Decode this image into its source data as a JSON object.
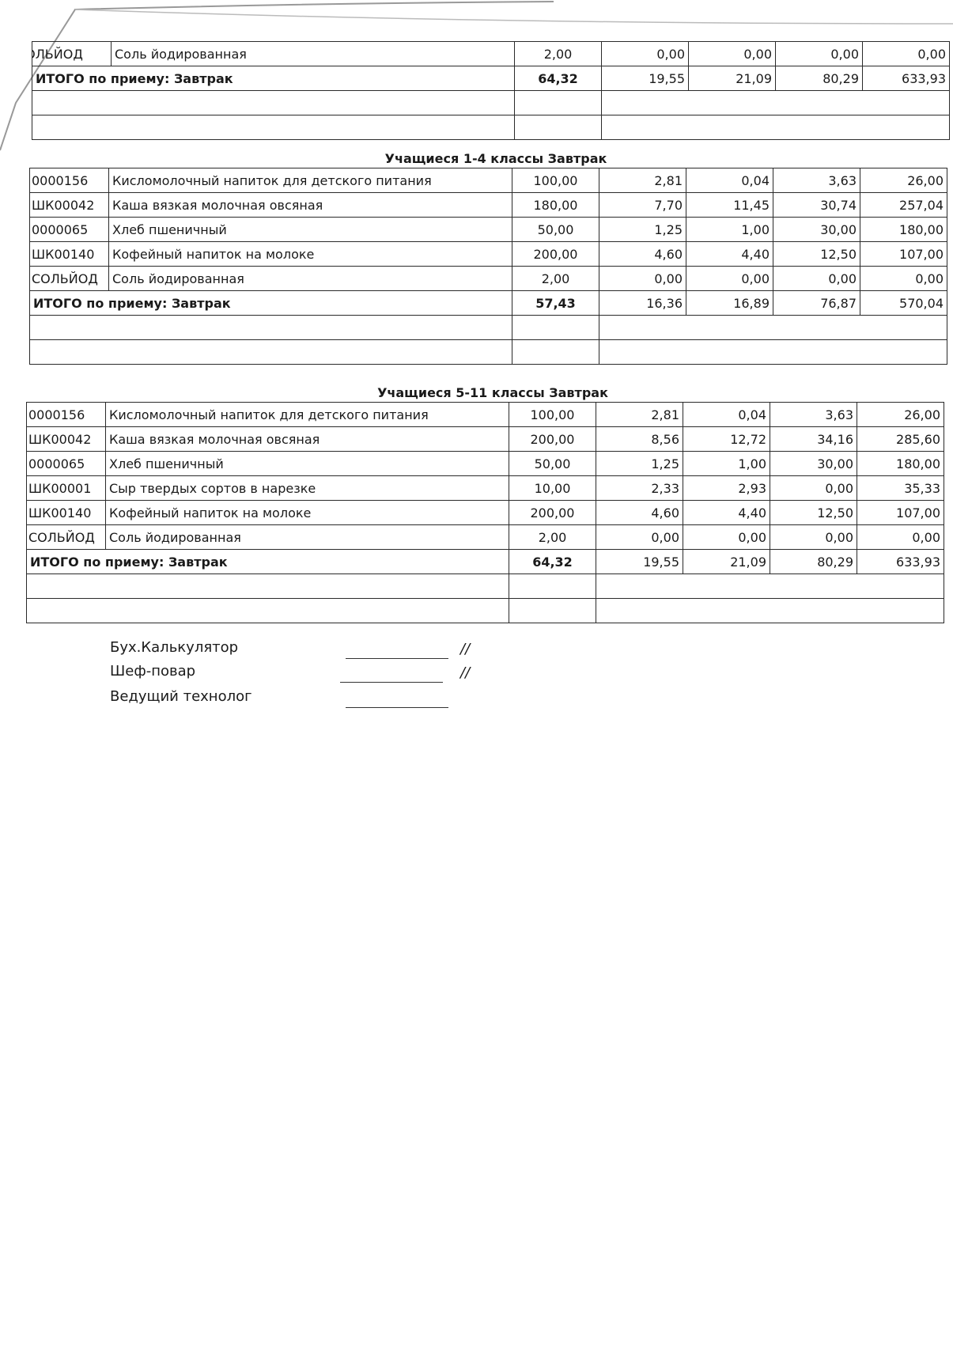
{
  "sections": [
    {
      "title": "",
      "rows": [
        {
          "code": "СОЛЬЙОД",
          "name": "Соль йодированная",
          "qty": "2,00",
          "v": [
            "0,00",
            "0,00",
            "0,00",
            "0,00"
          ]
        }
      ],
      "total": {
        "label": "ИТОГО по приему: Завтрак",
        "qty": "64,32",
        "v": [
          "19,55",
          "21,09",
          "80,29",
          "633,93"
        ]
      }
    },
    {
      "title": "Учащиеся 1-4 классы Завтрак",
      "rows": [
        {
          "code": "0000156",
          "name": "Кисломолочный напиток для детского питания",
          "qty": "100,00",
          "v": [
            "2,81",
            "0,04",
            "3,63",
            "26,00"
          ]
        },
        {
          "code": "ШК00042",
          "name": "Каша вязкая молочная овсяная",
          "qty": "180,00",
          "v": [
            "7,70",
            "11,45",
            "30,74",
            "257,04"
          ]
        },
        {
          "code": "0000065",
          "name": "Хлеб пшеничный",
          "qty": "50,00",
          "v": [
            "1,25",
            "1,00",
            "30,00",
            "180,00"
          ]
        },
        {
          "code": "ШК00140",
          "name": "Кофейный напиток на молоке",
          "qty": "200,00",
          "v": [
            "4,60",
            "4,40",
            "12,50",
            "107,00"
          ]
        },
        {
          "code": "СОЛЬЙОД",
          "name": "Соль йодированная",
          "qty": "2,00",
          "v": [
            "0,00",
            "0,00",
            "0,00",
            "0,00"
          ]
        }
      ],
      "total": {
        "label": "ИТОГО по приему: Завтрак",
        "qty": "57,43",
        "v": [
          "16,36",
          "16,89",
          "76,87",
          "570,04"
        ]
      }
    },
    {
      "title": "Учащиеся 5-11 классы Завтрак",
      "rows": [
        {
          "code": "0000156",
          "name": "Кисломолочный напиток для детского питания",
          "qty": "100,00",
          "v": [
            "2,81",
            "0,04",
            "3,63",
            "26,00"
          ]
        },
        {
          "code": "ШК00042",
          "name": "Каша вязкая молочная овсяная",
          "qty": "200,00",
          "v": [
            "8,56",
            "12,72",
            "34,16",
            "285,60"
          ]
        },
        {
          "code": "0000065",
          "name": "Хлеб пшеничный",
          "qty": "50,00",
          "v": [
            "1,25",
            "1,00",
            "30,00",
            "180,00"
          ]
        },
        {
          "code": "ШК00001",
          "name": "Сыр твердых сортов в нарезке",
          "qty": "10,00",
          "v": [
            "2,33",
            "2,93",
            "0,00",
            "35,33"
          ]
        },
        {
          "code": "ШК00140",
          "name": "Кофейный напиток на молоке",
          "qty": "200,00",
          "v": [
            "4,60",
            "4,40",
            "12,50",
            "107,00"
          ]
        },
        {
          "code": "СОЛЬЙОД",
          "name": "Соль йодированная",
          "qty": "2,00",
          "v": [
            "0,00",
            "0,00",
            "0,00",
            "0,00"
          ]
        }
      ],
      "total": {
        "label": "ИТОГО по приему: Завтрак",
        "qty": "64,32",
        "v": [
          "19,55",
          "21,09",
          "80,29",
          "633,93"
        ]
      }
    }
  ],
  "signatures": [
    {
      "role": "Бух.Калькулятор",
      "mark": "//"
    },
    {
      "role": "Шеф-повар",
      "mark": "//"
    },
    {
      "role": "Ведущий технолог",
      "mark": ""
    }
  ]
}
